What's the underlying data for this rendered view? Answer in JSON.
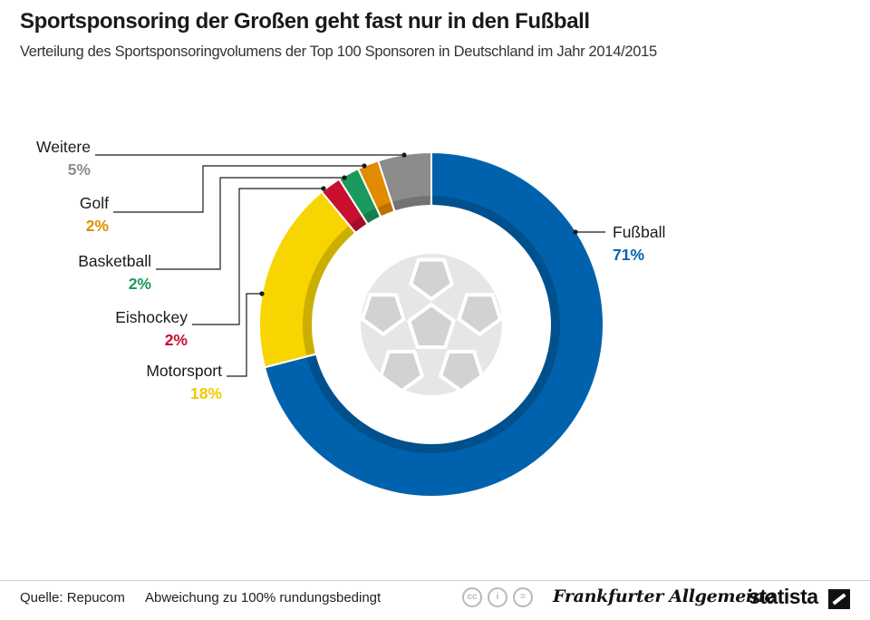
{
  "header": {
    "title": "Sportsponsoring der Großen geht fast nur in den Fußball",
    "subtitle": "Verteilung des Sportsponsoringvolumens der Top 100 Sponsoren in Deutschland im Jahr 2014/2015"
  },
  "chart_data": {
    "type": "pie",
    "style": "donut",
    "start": "top",
    "direction": "clockwise",
    "slices": [
      {
        "name": "Fußball",
        "value": 71,
        "label": "71%",
        "color": "#0062ad"
      },
      {
        "name": "Motorsport",
        "value": 18,
        "label": "18%",
        "color": "#f8d500"
      },
      {
        "name": "Eishockey",
        "value": 2,
        "label": "2%",
        "color": "#c8102e"
      },
      {
        "name": "Basketball",
        "value": 2,
        "label": "2%",
        "color": "#1a9a5c"
      },
      {
        "name": "Golf",
        "value": 2,
        "label": "2%",
        "color": "#e38b00"
      },
      {
        "name": "Weitere",
        "value": 5,
        "label": "5%",
        "color": "#8c8c8c"
      }
    ],
    "center_icon": "football-icon"
  },
  "footer": {
    "source": "Quelle: Repucom",
    "note": "Abweichung zu 100% rundungsbedingt",
    "license_icons": [
      "cc-icon",
      "by-icon",
      "nd-icon"
    ],
    "brand_faz": "Frankfurter Allgemeine",
    "brand_statista": "statista"
  }
}
